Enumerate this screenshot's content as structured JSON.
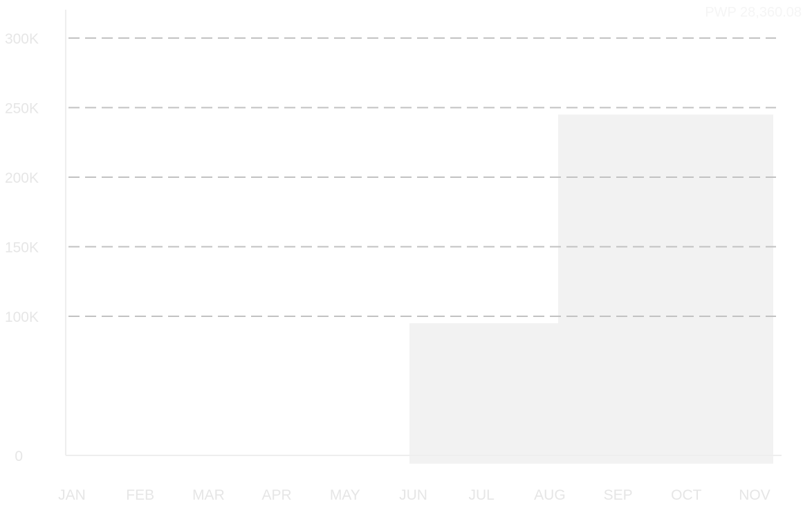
{
  "chart_data": {
    "type": "area",
    "subtype": "step",
    "categories": [
      "JAN",
      "FEB",
      "MAR",
      "APR",
      "MAY",
      "JUN",
      "JUL",
      "AUG",
      "SEP",
      "OCT",
      "NOV"
    ],
    "y_ticks": [
      {
        "value": 0,
        "label": "0"
      },
      {
        "value": 100000,
        "label": "100K"
      },
      {
        "value": 150000,
        "label": "150K"
      },
      {
        "value": 200000,
        "label": "200K"
      },
      {
        "value": 250000,
        "label": "250K"
      },
      {
        "value": 300000,
        "label": "300K"
      }
    ],
    "ylim": [
      0,
      300000
    ],
    "grid": true,
    "grid_style": "dashed",
    "annotation": "PWP 28,360.08",
    "steps": [
      {
        "from": "JUN",
        "to": "AUG",
        "value": 95000
      },
      {
        "from": "AUG",
        "to": "NOV",
        "value": 245000
      }
    ],
    "title": "",
    "xlabel": "",
    "ylabel": ""
  },
  "colors": {
    "background": "#ffffff",
    "grid": "#c2c2c2",
    "axis": "#eeeeee",
    "area": "#f2f2f2",
    "label": "#e6e6e6"
  }
}
